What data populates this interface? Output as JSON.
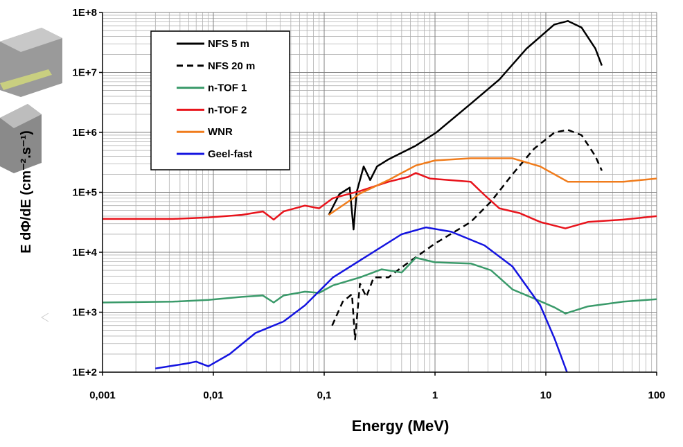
{
  "chart_data": {
    "type": "line",
    "xlabel": "Energy (MeV)",
    "ylabel": "E dΦ/dE (cm⁻².s⁻¹)",
    "xscale": "log",
    "yscale": "log",
    "xlim": [
      0.001,
      100
    ],
    "ylim": [
      100,
      100000000
    ],
    "xticks": [
      {
        "value": 0.001,
        "label": "0,001"
      },
      {
        "value": 0.01,
        "label": "0,01"
      },
      {
        "value": 0.1,
        "label": "0,1"
      },
      1,
      10,
      100
    ],
    "yticks": [
      {
        "value": 100,
        "label": "1E+2"
      },
      {
        "value": 1000,
        "label": "1E+3"
      },
      {
        "value": 10000,
        "label": "1E+4"
      },
      {
        "value": 100000,
        "label": "1E+5"
      },
      {
        "value": 1000000,
        "label": "1E+6"
      },
      {
        "value": 10000000,
        "label": "1E+7"
      },
      {
        "value": 100000000,
        "label": "1E+8"
      }
    ],
    "grid": true,
    "minor_grid": true,
    "legend": "upper left",
    "series": [
      {
        "name": "NFS 5 m",
        "color": "#000000",
        "line_style": "solid",
        "x": [
          0.11,
          0.137,
          0.17,
          0.184,
          0.196,
          0.227,
          0.26,
          0.3,
          0.376,
          0.67,
          1.03,
          2.1,
          3.8,
          6.7,
          11.9,
          15.8,
          21,
          28,
          32
        ],
        "values": [
          42000,
          93000,
          120000,
          24000,
          100000,
          270000,
          160000,
          270000,
          350000,
          600000,
          1000000,
          3000000,
          7600000,
          25000000,
          63000000,
          72000000,
          56000000,
          25000000,
          13000000
        ]
      },
      {
        "name": "NFS 20 m",
        "color": "#000000",
        "line_style": "dashed",
        "x": [
          0.118,
          0.147,
          0.178,
          0.19,
          0.21,
          0.24,
          0.28,
          0.38,
          0.5,
          1.0,
          2.1,
          3.2,
          5,
          7.8,
          12,
          15.8,
          21,
          28,
          32
        ],
        "values": [
          600,
          1500,
          2000,
          350,
          3000,
          1800,
          3800,
          3800,
          5600,
          14000,
          32000,
          70000,
          200000,
          530000,
          1000000,
          1100000,
          900000,
          400000,
          230000
        ]
      },
      {
        "name": "n-TOF 1",
        "color": "#3a9a6a",
        "line_style": "solid",
        "x": [
          0.001,
          0.0043,
          0.009,
          0.018,
          0.028,
          0.035,
          0.043,
          0.067,
          0.09,
          0.12,
          0.21,
          0.33,
          0.5,
          0.67,
          1.0,
          2.1,
          3.2,
          5,
          7.8,
          12,
          15,
          24,
          50,
          100
        ],
        "values": [
          1450,
          1500,
          1600,
          1800,
          1900,
          1450,
          1900,
          2200,
          2100,
          2800,
          3800,
          5200,
          4600,
          8100,
          6800,
          6500,
          5000,
          2400,
          1700,
          1200,
          950,
          1250,
          1500,
          1650
        ]
      },
      {
        "name": "n-TOF 2",
        "color": "#e8141c",
        "line_style": "solid",
        "x": [
          0.001,
          0.0043,
          0.009,
          0.018,
          0.028,
          0.035,
          0.043,
          0.067,
          0.09,
          0.12,
          0.21,
          0.38,
          0.57,
          0.67,
          0.9,
          2.1,
          2.8,
          3.8,
          5.8,
          8.9,
          15,
          24,
          50,
          100
        ],
        "values": [
          36000,
          36000,
          38000,
          42000,
          48000,
          35000,
          48000,
          60000,
          54000,
          80000,
          105000,
          150000,
          180000,
          210000,
          170000,
          150000,
          90000,
          54000,
          45000,
          32000,
          25000,
          32000,
          35000,
          40000
        ]
      },
      {
        "name": "WNR",
        "color": "#f07c1c",
        "line_style": "solid",
        "x": [
          0.11,
          0.21,
          0.38,
          0.67,
          1.0,
          2.1,
          5,
          8.9,
          15.8,
          24,
          50,
          100
        ],
        "values": [
          42000,
          95000,
          160000,
          280000,
          340000,
          370000,
          370000,
          270000,
          150000,
          150000,
          150000,
          170000
        ]
      },
      {
        "name": "Geel-fast",
        "color": "#1414e0",
        "line_style": "solid",
        "x": [
          0.003,
          0.0058,
          0.007,
          0.009,
          0.014,
          0.024,
          0.043,
          0.067,
          0.12,
          0.24,
          0.5,
          0.83,
          1.4,
          2.8,
          5,
          8.9,
          12,
          15.5
        ],
        "values": [
          115,
          140,
          150,
          125,
          200,
          450,
          700,
          1300,
          3800,
          8500,
          20000,
          26000,
          22000,
          13000,
          5800,
          1300,
          360,
          100
        ]
      }
    ]
  }
}
